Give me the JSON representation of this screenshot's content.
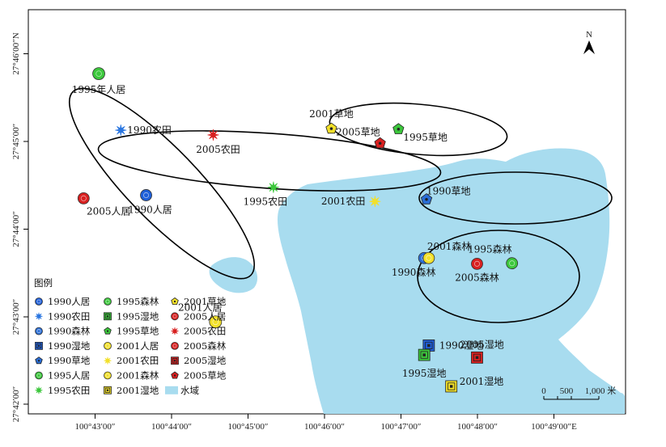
{
  "map": {
    "north_label": "N",
    "x_ticks": [
      "100°43′00″",
      "100°44′00″",
      "100°45′00″",
      "100°46′00″",
      "100°47′00″",
      "100°48′00″",
      "100°49′00″E"
    ],
    "y_ticks": [
      "27°46′00″N",
      "27°45′00″",
      "27°44′00″",
      "27°43′00″",
      "27°42′00″"
    ],
    "scale_labels": [
      "0",
      "500",
      "1,000 米"
    ],
    "legend_title": "图例",
    "colors": {
      "water": "#a8dcef",
      "land": "#ffffff",
      "ellipse": "#000000"
    }
  },
  "points": [
    {
      "name": "1990人居",
      "label": "1990人居",
      "sym": "circ",
      "color": "#1f5fd8",
      "lon": 100.7278,
      "lat": 27.7397
    },
    {
      "name": "1990农田",
      "label": "1990农田",
      "sym": "star",
      "color": "#2a76e0",
      "lon": 100.7223,
      "lat": 27.7521
    },
    {
      "name": "1990草地",
      "label": "1990草地",
      "sym": "pent",
      "color": "#2a6ed6",
      "lon": 100.7888,
      "lat": 27.7389
    },
    {
      "name": "1990森林",
      "label": "1990森林",
      "sym": "circ",
      "color": "#2a6ed6",
      "lon": 100.7883,
      "lat": 27.7277
    },
    {
      "name": "1990湿地",
      "label": "1990湿地",
      "sym": "sq",
      "color": "#1f5fd8",
      "lon": 100.7893,
      "lat": 27.711
    },
    {
      "name": "1995年人居",
      "label": "1995年人居",
      "sym": "circ",
      "color": "#3cc73c",
      "lon": 100.7175,
      "lat": 27.7629
    },
    {
      "name": "1995农田",
      "label": "1995农田",
      "sym": "star",
      "color": "#3cc73c",
      "lon": 100.7555,
      "lat": 27.7412
    },
    {
      "name": "1995草地",
      "label": "1995草地",
      "sym": "pent",
      "color": "#3cc73c",
      "lon": 100.7827,
      "lat": 27.7523
    },
    {
      "name": "1995森林",
      "label": "1995森林",
      "sym": "circ",
      "color": "#3cc73c",
      "lon": 100.8074,
      "lat": 27.7267
    },
    {
      "name": "1995湿地",
      "label": "1995湿地",
      "sym": "sq",
      "color": "#3cc73c",
      "lon": 100.7883,
      "lat": 27.7092
    },
    {
      "name": "2001人居",
      "label": "2001人居",
      "sym": "circ",
      "color": "#f2e02a",
      "lon": 100.7429,
      "lat": 27.7155
    },
    {
      "name": "2001农田",
      "label": "2001农田",
      "sym": "star",
      "color": "#f2e02a",
      "lon": 100.7776,
      "lat": 27.7385
    },
    {
      "name": "2001草地",
      "label": "2001草地",
      "sym": "pent",
      "color": "#f2e02a",
      "lon": 100.7681,
      "lat": 27.7524
    },
    {
      "name": "2001森林",
      "label": "2001森林",
      "sym": "circ",
      "color": "#f2e02a",
      "lon": 100.7893,
      "lat": 27.7277
    },
    {
      "name": "2001湿地",
      "label": "2001湿地",
      "sym": "sq",
      "color": "#f2e02a",
      "lon": 100.7942,
      "lat": 27.7032
    },
    {
      "name": "2005人居",
      "label": "2005人居",
      "sym": "circ",
      "color": "#d82020",
      "lon": 100.7142,
      "lat": 27.7391
    },
    {
      "name": "2005农田",
      "label": "2005农田",
      "sym": "star",
      "color": "#d82020",
      "lon": 100.7424,
      "lat": 27.7512
    },
    {
      "name": "2005草地",
      "label": "2005草地",
      "sym": "pent",
      "color": "#d82020",
      "lon": 100.7787,
      "lat": 27.7496
    },
    {
      "name": "2005森林",
      "label": "2005森林",
      "sym": "circ",
      "color": "#d82020",
      "lon": 100.7998,
      "lat": 27.7266
    },
    {
      "name": "2005湿地",
      "label": "2005湿地",
      "sym": "sq",
      "color": "#d82020",
      "lon": 100.7998,
      "lat": 27.7087
    }
  ],
  "legend": [
    {
      "label": "1990人居",
      "sym": "circ",
      "color": "#1f5fd8"
    },
    {
      "label": "1990农田",
      "sym": "star",
      "color": "#2a76e0"
    },
    {
      "label": "1990森林",
      "sym": "circ",
      "color": "#2a6ed6"
    },
    {
      "label": "1990湿地",
      "sym": "sq",
      "color": "#1f5fd8"
    },
    {
      "label": "1990草地",
      "sym": "pent",
      "color": "#2a6ed6"
    },
    {
      "label": "1995人居",
      "sym": "circ",
      "color": "#3cc73c"
    },
    {
      "label": "1995农田",
      "sym": "star",
      "color": "#3cc73c"
    },
    {
      "label": "1995森林",
      "sym": "circ",
      "color": "#3cc73c"
    },
    {
      "label": "1995湿地",
      "sym": "sq",
      "color": "#3cc73c"
    },
    {
      "label": "1995草地",
      "sym": "pent",
      "color": "#3cc73c"
    },
    {
      "label": "2001人居",
      "sym": "circ",
      "color": "#f2e02a"
    },
    {
      "label": "2001农田",
      "sym": "star",
      "color": "#f2e02a"
    },
    {
      "label": "2001森林",
      "sym": "circ",
      "color": "#f2e02a"
    },
    {
      "label": "2001湿地",
      "sym": "sq",
      "color": "#f2e02a"
    },
    {
      "label": "2001草地",
      "sym": "pent",
      "color": "#f2e02a"
    },
    {
      "label": "2005人居",
      "sym": "circ",
      "color": "#d82020"
    },
    {
      "label": "2005农田",
      "sym": "star",
      "color": "#d82020"
    },
    {
      "label": "2005森林",
      "sym": "circ",
      "color": "#d82020"
    },
    {
      "label": "2005湿地",
      "sym": "sq",
      "color": "#d82020"
    },
    {
      "label": "2005草地",
      "sym": "pent",
      "color": "#d82020"
    },
    {
      "label": "水域",
      "sym": "water",
      "color": "#a8dcef"
    }
  ]
}
